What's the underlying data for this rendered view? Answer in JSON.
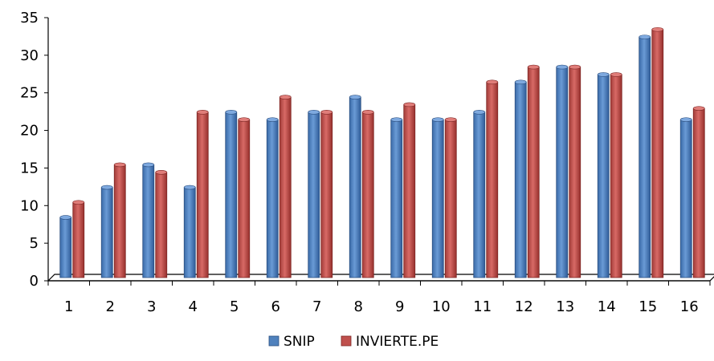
{
  "chart_data": {
    "type": "bar",
    "categories": [
      "1",
      "2",
      "3",
      "4",
      "5",
      "6",
      "7",
      "8",
      "9",
      "10",
      "11",
      "12",
      "13",
      "14",
      "15",
      "16"
    ],
    "series": [
      {
        "name": "SNIP",
        "color": "#4f81bd",
        "values": [
          8,
          12,
          15,
          12,
          22,
          21,
          22,
          24,
          21,
          21,
          22,
          26,
          28,
          27,
          32,
          21
        ]
      },
      {
        "name": "INVIERTE.PE",
        "color": "#c0504d",
        "values": [
          10,
          15,
          14,
          22,
          21,
          24,
          22,
          22,
          23,
          21,
          26,
          28,
          28,
          27,
          33,
          22.5
        ]
      }
    ],
    "ylim": [
      0,
      35
    ],
    "yticks": [
      0,
      5,
      10,
      15,
      20,
      25,
      30,
      35
    ],
    "grid": false,
    "legend_position": "bottom"
  }
}
